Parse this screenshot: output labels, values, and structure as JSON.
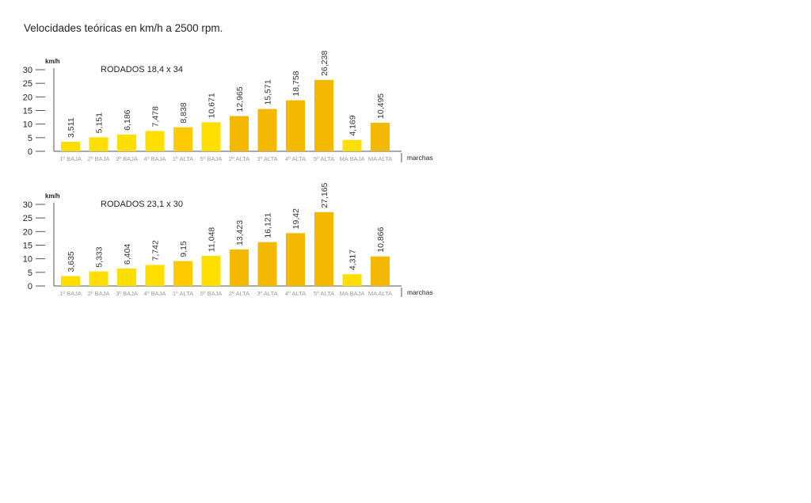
{
  "page": {
    "title": "Velocidades teóricas en km/h a 2500 rpm."
  },
  "colors": {
    "light": "#FFDE00",
    "mid": "#FFCA00",
    "dark": "#F5B800",
    "axis": "#555555"
  },
  "chart_data": [
    {
      "type": "bar",
      "subtitle": "RODADOS 18,4 x 34",
      "ylabel": "km/h",
      "xlabel": "marchas",
      "ylim": [
        0,
        30
      ],
      "yticks": [
        0,
        5,
        10,
        15,
        20,
        25,
        30
      ],
      "categories": [
        "1º BAJA",
        "2º BAJA",
        "3º BAJA",
        "4º BAJA",
        "1º ALTA",
        "5º BAJA",
        "2º ALTA",
        "3º ALTA",
        "4º ALTA",
        "5º ALTA",
        "MA BAJA",
        "MA ALTA"
      ],
      "values": [
        3.511,
        5.151,
        6.186,
        7.478,
        8.838,
        10.671,
        12.965,
        15.571,
        18.758,
        26.238,
        4.169,
        10.495
      ],
      "value_labels": [
        "3,511",
        "5,151",
        "6,186",
        "7,478",
        "8,838",
        "10,671",
        "12,965",
        "15,571",
        "18,758",
        "26,238",
        "4,169",
        "10,495"
      ],
      "bar_colors": [
        "#FFDE00",
        "#FFDE00",
        "#FFDE00",
        "#FFDE00",
        "#FFCA00",
        "#FFDE00",
        "#F5B800",
        "#F5B800",
        "#F5B800",
        "#F5B800",
        "#FFDE00",
        "#F5B800"
      ]
    },
    {
      "type": "bar",
      "subtitle": "RODADOS 23,1 x 30",
      "ylabel": "km/h",
      "xlabel": "marchas",
      "ylim": [
        0,
        30
      ],
      "yticks": [
        0,
        5,
        10,
        15,
        20,
        25,
        30
      ],
      "categories": [
        "1º BAJA",
        "2º BAJA",
        "3º BAJA",
        "4º BAJA",
        "1º ALTA",
        "5º BAJA",
        "2º ALTA",
        "3º ALTA",
        "4º ALTA",
        "5º ALTA",
        "MA BAJA",
        "MA ALTA"
      ],
      "values": [
        3.635,
        5.333,
        6.404,
        7.742,
        9.15,
        11.048,
        13.423,
        16.121,
        19.42,
        27.165,
        4.317,
        10.866
      ],
      "value_labels": [
        "3,635",
        "5,333",
        "6,404",
        "7,742",
        "9,15",
        "11,048",
        "13,423",
        "16,121",
        "19,42",
        "27,165",
        "4,317",
        "10,866"
      ],
      "bar_colors": [
        "#FFDE00",
        "#FFDE00",
        "#FFDE00",
        "#FFDE00",
        "#FFCA00",
        "#FFDE00",
        "#F5B800",
        "#F5B800",
        "#F5B800",
        "#F5B800",
        "#FFDE00",
        "#F5B800"
      ]
    }
  ]
}
